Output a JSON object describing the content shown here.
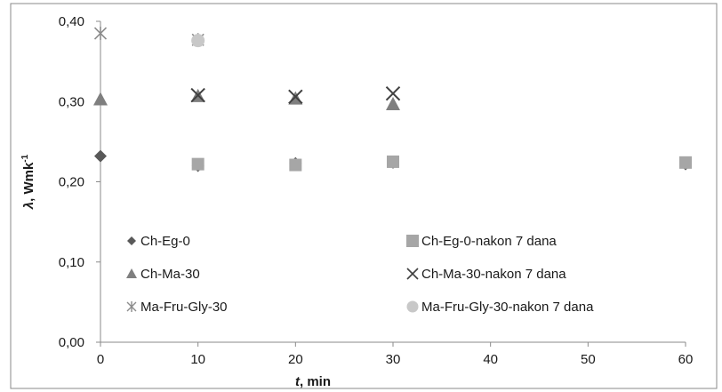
{
  "chart_data": {
    "type": "scatter",
    "title": "",
    "xlabel": "min",
    "xlabel_symbol": "t",
    "ylabel": "Wmk",
    "ylabel_symbol": "λ",
    "ylabel_superscript": "-1",
    "xlim": [
      0,
      60
    ],
    "ylim": [
      0.0,
      0.4
    ],
    "x_ticks": [
      0,
      10,
      20,
      30,
      40,
      50,
      60
    ],
    "y_ticks": [
      0.0,
      0.1,
      0.2,
      0.3,
      0.4
    ],
    "x_tick_labels": [
      "0",
      "10",
      "20",
      "30",
      "40",
      "50",
      "60"
    ],
    "y_tick_labels": [
      "0,00",
      "0,10",
      "0,20",
      "0,30",
      "0,40"
    ],
    "grid": false,
    "legend_position": "inside-bottom",
    "series": [
      {
        "name": "Ch-Eg-0",
        "marker": "diamond",
        "color": "#595959",
        "points": [
          [
            0,
            0.232
          ],
          [
            10,
            0.22
          ],
          [
            20,
            0.223
          ],
          [
            30,
            0.224
          ],
          [
            60,
            0.222
          ]
        ]
      },
      {
        "name": "Ch-Eg-0-nakon 7 dana",
        "marker": "square",
        "color": "#a6a6a6",
        "points": [
          [
            10,
            0.222
          ],
          [
            20,
            0.221
          ],
          [
            30,
            0.225
          ],
          [
            60,
            0.224
          ]
        ]
      },
      {
        "name": "Ch-Ma-30",
        "marker": "triangle",
        "color": "#7f7f7f",
        "points": [
          [
            0,
            0.303
          ],
          [
            10,
            0.307
          ],
          [
            20,
            0.304
          ],
          [
            30,
            0.297
          ]
        ]
      },
      {
        "name": "Ch-Ma-30-nakon 7 dana",
        "marker": "x",
        "color": "#404040",
        "points": [
          [
            10,
            0.308
          ],
          [
            20,
            0.306
          ],
          [
            30,
            0.31
          ]
        ]
      },
      {
        "name": "Ma-Fru-Gly-30",
        "marker": "star",
        "color": "#8c8c8c",
        "points": [
          [
            0,
            0.385
          ],
          [
            10,
            0.377
          ]
        ]
      },
      {
        "name": "Ma-Fru-Gly-30-nakon 7 dana",
        "marker": "circle",
        "color": "#c8c8c8",
        "points": [
          [
            10,
            0.376
          ]
        ]
      }
    ]
  }
}
